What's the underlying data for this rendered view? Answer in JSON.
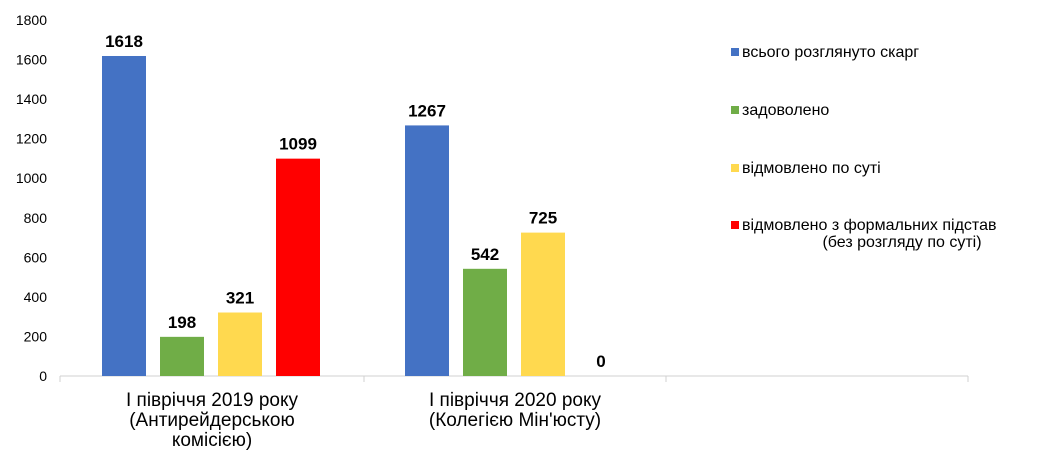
{
  "chart_data": {
    "type": "bar",
    "ylim": [
      0,
      1800
    ],
    "y_ticks": [
      0,
      200,
      400,
      600,
      800,
      1000,
      1200,
      1400,
      1600,
      1800
    ],
    "grid": false,
    "legend_position": "right",
    "categories": [
      [
        "I півріччя 2019 року",
        "(Антирейдерською",
        "комісією)"
      ],
      [
        "I півріччя 2020 року",
        "(Колегією Мін'юсту)"
      ]
    ],
    "series": [
      {
        "name": "всього розглянуто скарг",
        "color": "#4472C4",
        "values": [
          1618,
          1267
        ],
        "labels": [
          "1618",
          "1267"
        ]
      },
      {
        "name": "задоволено",
        "color": "#70AD47",
        "values": [
          198,
          542
        ],
        "labels": [
          "198",
          "542"
        ]
      },
      {
        "name": "відмовлено по суті",
        "color": "#FFD94F",
        "values": [
          321,
          725
        ],
        "labels": [
          "321",
          "725"
        ]
      },
      {
        "name": "відмовлено з формальних підстав\n(без розгляду по суті)",
        "color": "#FF0000",
        "values": [
          1099,
          0
        ],
        "labels": [
          "1099",
          "0"
        ]
      }
    ]
  }
}
